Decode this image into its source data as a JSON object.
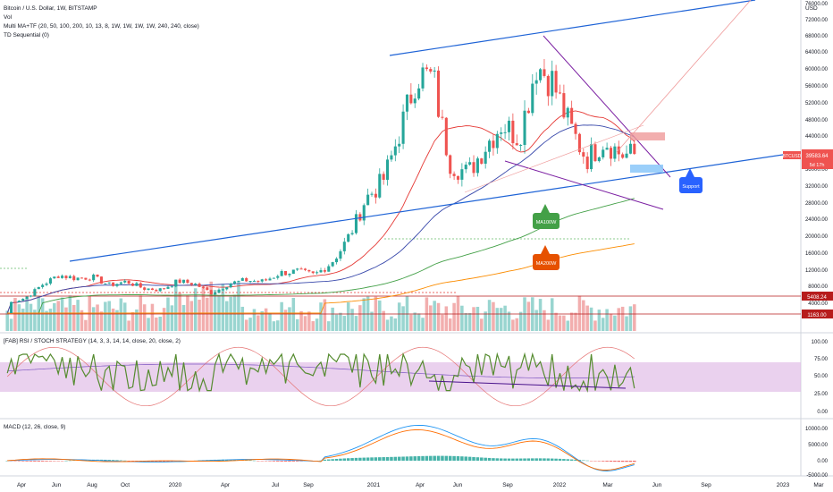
{
  "header": {
    "title": "Bitcoin / U.S. Dollar, 1W, BITSTAMP",
    "legend": [
      "Vol",
      "Multi MA+TF (20, 50, 100, 200, 10, 13, 8, 1W, 1W, 1W, 1W, 240, 240, close)",
      "TD Sequential (0)"
    ],
    "currency": "USD"
  },
  "price_axis": {
    "ticks": [
      "76000.00",
      "72000.00",
      "68000.00",
      "64000.00",
      "60000.00",
      "56000.00",
      "52000.00",
      "48000.00",
      "44000.00",
      "40000.00",
      "36000.00",
      "32000.00",
      "28000.00",
      "24000.00",
      "20000.00",
      "16000.00",
      "12000.00",
      "8000.00",
      "4000.00"
    ],
    "tags": [
      {
        "text": "BTCUSD",
        "color": "#ef5350"
      },
      {
        "text": "39583.64",
        "color": "#ef5350"
      },
      {
        "text": "5d 17h",
        "color": "#ef5350"
      },
      {
        "text": "5408.24",
        "color": "#b71c1c"
      },
      {
        "text": "1163.00",
        "color": "#b71c1c"
      }
    ]
  },
  "rsi_pane": {
    "label": "[FAB] RSI / STOCH STRATEGY (14, 3, 3, 14, 14, close, 20, close, 2)",
    "ticks": [
      "100.00",
      "75.00",
      "50.00",
      "25.00",
      "0.00"
    ]
  },
  "macd_pane": {
    "label": "MACD (12, 26, close, 9)",
    "ticks": [
      "10000.00",
      "5000.00",
      "0.00",
      "-5000.00"
    ]
  },
  "time_axis": {
    "labels": [
      "Apr",
      "Jun",
      "Aug",
      "Oct",
      "2020",
      "Apr",
      "Jul",
      "Sep",
      "2021",
      "Apr",
      "Jun",
      "Sep",
      "2022",
      "Mar",
      "Jun",
      "Sep",
      "2023",
      "Mar"
    ]
  },
  "annotations": [
    {
      "text": "Support",
      "color": "#2962ff"
    },
    {
      "text": "MA100W",
      "color": "#43a047"
    },
    {
      "text": "MA200W",
      "color": "#e65100"
    }
  ],
  "chart_data": {
    "type": "candlestick",
    "symbol": "BTCUSD",
    "timeframe": "1W",
    "scale": "log",
    "last_price": 39583.64,
    "countdown": "5d 17h",
    "horizontal_levels": [
      5408.24,
      1163.0
    ],
    "series": [
      {
        "name": "BTCUSD",
        "dates": [
          "2019-03",
          "2019-04",
          "2019-05",
          "2019-06",
          "2019-07",
          "2019-08",
          "2019-09",
          "2019-10",
          "2019-11",
          "2019-12",
          "2020-01",
          "2020-02",
          "2020-03",
          "2020-04",
          "2020-05",
          "2020-06",
          "2020-07",
          "2020-08",
          "2020-09",
          "2020-10",
          "2020-11",
          "2020-12",
          "2021-01",
          "2021-02",
          "2021-03",
          "2021-04",
          "2021-05",
          "2021-06",
          "2021-07",
          "2021-08",
          "2021-09",
          "2021-10",
          "2021-11",
          "2021-12",
          "2022-01",
          "2022-02",
          "2022-03"
        ],
        "close": [
          4000,
          5200,
          8300,
          10800,
          10000,
          10300,
          8300,
          9200,
          7500,
          7200,
          9300,
          8600,
          6400,
          8700,
          9500,
          9200,
          11300,
          11700,
          10800,
          13800,
          19700,
          29000,
          33000,
          45000,
          58800,
          57700,
          37300,
          35000,
          41500,
          47100,
          43800,
          61300,
          57000,
          46300,
          38500,
          43200,
          39583
        ]
      }
    ],
    "moving_averages": [
      {
        "name": "MA20W",
        "color": "#e53935"
      },
      {
        "name": "MA50W",
        "color": "#3949ab"
      },
      {
        "name": "MA100W",
        "color": "#43a047"
      },
      {
        "name": "MA200W",
        "color": "#fb8c00"
      }
    ],
    "rsi": {
      "ylim": [
        0,
        100
      ],
      "band": [
        30,
        70
      ]
    },
    "macd": {
      "ylim": [
        -7000,
        12000
      ]
    }
  }
}
